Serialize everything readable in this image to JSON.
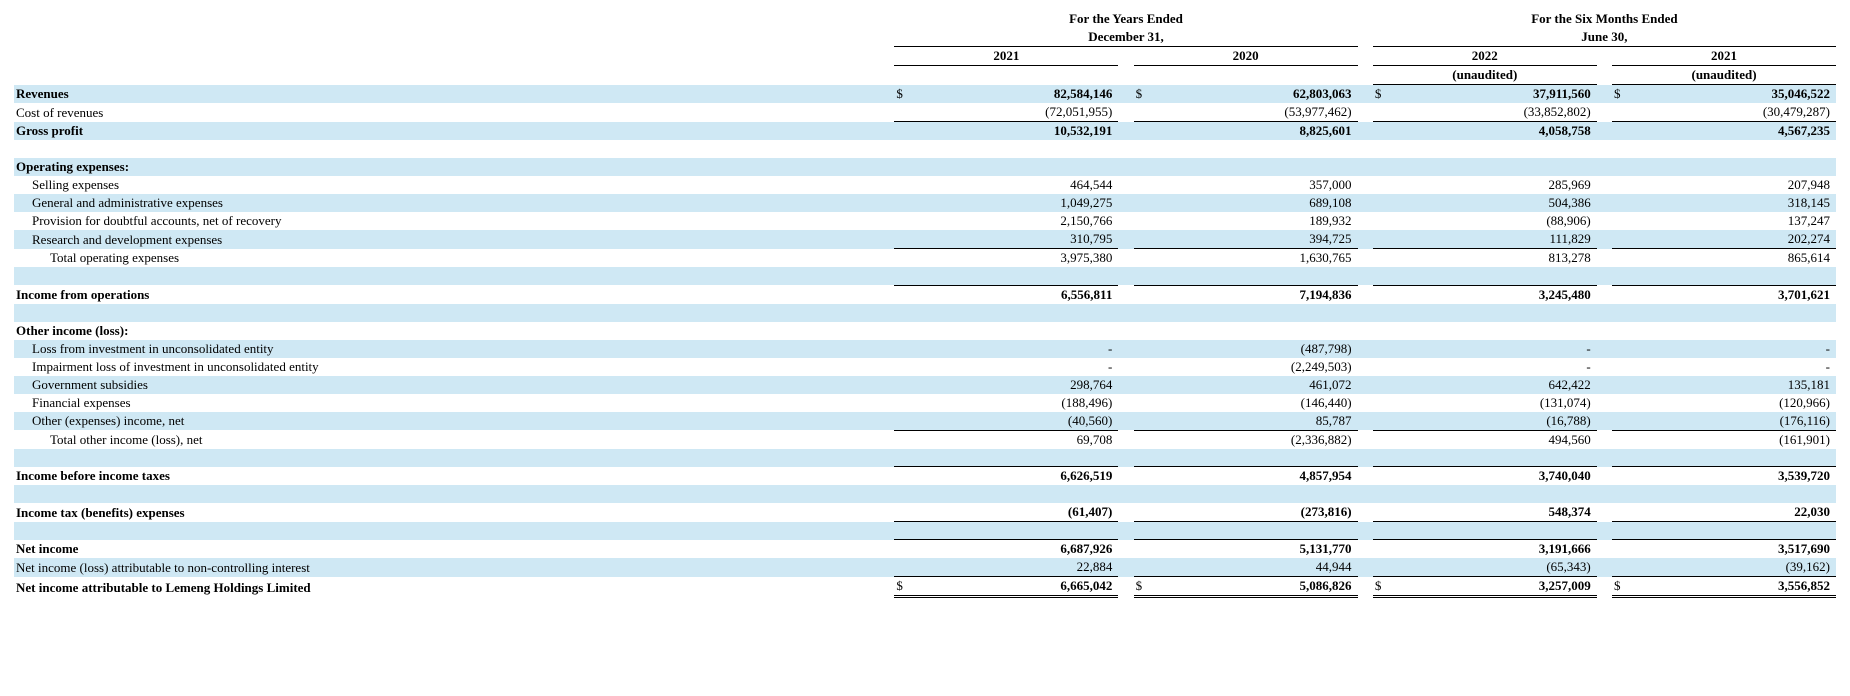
{
  "colors": {
    "row_shade": "#cfe8f4",
    "text": "#000000",
    "background": "#ffffff",
    "rule": "#000000"
  },
  "typography": {
    "font_family": "Times New Roman",
    "base_fontsize_pt": 10,
    "header_bold": true
  },
  "headers": {
    "annual_title_line1": "For the Years Ended",
    "annual_title_line2": "December 31,",
    "interim_title_line1": "For the Six Months Ended",
    "interim_title_line2": "June 30,",
    "col1": "2021",
    "col2": "2020",
    "col3": "2022",
    "col4": "2021",
    "unaudited": "(unaudited)"
  },
  "currency_symbol": "$",
  "rows": [
    {
      "id": "revenues",
      "label": "Revenues",
      "shade": true,
      "bold": true,
      "indent": 0,
      "show_currency": true,
      "v": [
        "82,584,146",
        "62,803,063",
        "37,911,560",
        "35,046,522"
      ],
      "border": "none"
    },
    {
      "id": "cost_of_revenues",
      "label": "Cost of revenues",
      "shade": false,
      "bold": false,
      "indent": 0,
      "v": [
        "(72,051,955)",
        "(53,977,462)",
        "(33,852,802)",
        "(30,479,287)"
      ],
      "border": "none"
    },
    {
      "id": "gross_profit",
      "label": "Gross profit",
      "shade": true,
      "bold": true,
      "indent": 0,
      "v": [
        "10,532,191",
        "8,825,601",
        "4,058,758",
        "4,567,235"
      ],
      "border": "sub"
    },
    {
      "id": "blank1",
      "blank": true
    },
    {
      "id": "operating_expenses_hdr",
      "label": "Operating expenses:",
      "shade": true,
      "bold": true,
      "indent": 0,
      "v": [
        "",
        "",
        "",
        ""
      ],
      "border": "none"
    },
    {
      "id": "selling_expenses",
      "label": "Selling expenses",
      "shade": false,
      "bold": false,
      "indent": 1,
      "v": [
        "464,544",
        "357,000",
        "285,969",
        "207,948"
      ],
      "border": "none"
    },
    {
      "id": "ga_expenses",
      "label": "General and administrative expenses",
      "shade": true,
      "bold": false,
      "indent": 1,
      "v": [
        "1,049,275",
        "689,108",
        "504,386",
        "318,145"
      ],
      "border": "none"
    },
    {
      "id": "doubtful",
      "label": "Provision for doubtful accounts, net of recovery",
      "shade": false,
      "bold": false,
      "indent": 1,
      "v": [
        "2,150,766",
        "189,932",
        "(88,906)",
        "137,247"
      ],
      "border": "none"
    },
    {
      "id": "rd_expenses",
      "label": "Research and development expenses",
      "shade": true,
      "bold": false,
      "indent": 1,
      "v": [
        "310,795",
        "394,725",
        "111,829",
        "202,274"
      ],
      "border": "none"
    },
    {
      "id": "total_opex",
      "label": "Total operating expenses",
      "shade": false,
      "bold": false,
      "indent": 2,
      "v": [
        "3,975,380",
        "1,630,765",
        "813,278",
        "865,614"
      ],
      "border": "sub"
    },
    {
      "id": "blank2",
      "blank": true,
      "shade": true
    },
    {
      "id": "income_ops",
      "label": "Income from operations",
      "shade": false,
      "bold": true,
      "indent": 0,
      "v": [
        "6,556,811",
        "7,194,836",
        "3,245,480",
        "3,701,621"
      ],
      "border": "sub"
    },
    {
      "id": "blank3",
      "blank": true,
      "shade": true
    },
    {
      "id": "other_income_hdr",
      "label": "Other income (loss):",
      "shade": false,
      "bold": true,
      "indent": 0,
      "v": [
        "",
        "",
        "",
        ""
      ],
      "border": "none"
    },
    {
      "id": "loss_invest",
      "label": "Loss from investment in unconsolidated entity",
      "shade": true,
      "bold": false,
      "indent": 1,
      "v": [
        "-",
        "(487,798)",
        "-",
        "-"
      ],
      "border": "none"
    },
    {
      "id": "impairment",
      "label": "Impairment loss of investment in unconsolidated entity",
      "shade": false,
      "bold": false,
      "indent": 1,
      "v": [
        "-",
        "(2,249,503)",
        "-",
        "-"
      ],
      "border": "none"
    },
    {
      "id": "gov_subs",
      "label": "Government subsidies",
      "shade": true,
      "bold": false,
      "indent": 1,
      "v": [
        "298,764",
        "461,072",
        "642,422",
        "135,181"
      ],
      "border": "none"
    },
    {
      "id": "fin_exp",
      "label": "Financial expenses",
      "shade": false,
      "bold": false,
      "indent": 1,
      "v": [
        "(188,496)",
        "(146,440)",
        "(131,074)",
        "(120,966)"
      ],
      "border": "none"
    },
    {
      "id": "other_exp",
      "label": "Other (expenses) income, net",
      "shade": true,
      "bold": false,
      "indent": 1,
      "v": [
        "(40,560)",
        "85,787",
        "(16,788)",
        "(176,116)"
      ],
      "border": "none"
    },
    {
      "id": "total_other",
      "label": "Total other income (loss), net",
      "shade": false,
      "bold": false,
      "indent": 2,
      "v": [
        "69,708",
        "(2,336,882)",
        "494,560",
        "(161,901)"
      ],
      "border": "sub"
    },
    {
      "id": "blank4",
      "blank": true,
      "shade": true
    },
    {
      "id": "income_before_tax",
      "label": "Income before income taxes",
      "shade": false,
      "bold": true,
      "indent": 0,
      "v": [
        "6,626,519",
        "4,857,954",
        "3,740,040",
        "3,539,720"
      ],
      "border": "sub"
    },
    {
      "id": "blank5",
      "blank": true,
      "shade": true
    },
    {
      "id": "tax",
      "label": "Income tax (benefits) expenses",
      "shade": false,
      "bold": true,
      "indent": 0,
      "v": [
        "(61,407)",
        "(273,816)",
        "548,374",
        "22,030"
      ],
      "border": "none"
    },
    {
      "id": "blank6",
      "blank": true,
      "shade": true,
      "border_below_cells": "sub"
    },
    {
      "id": "net_income",
      "label": "Net income",
      "shade": false,
      "bold": true,
      "indent": 0,
      "v": [
        "6,687,926",
        "5,131,770",
        "3,191,666",
        "3,517,690"
      ],
      "border": "sub"
    },
    {
      "id": "nci",
      "label": "Net income (loss) attributable to non-controlling interest",
      "shade": true,
      "bold": false,
      "indent": 0,
      "v": [
        "22,884",
        "44,944",
        "(65,343)",
        "(39,162)"
      ],
      "border": "none"
    },
    {
      "id": "attributable",
      "label": "Net income attributable to Lemeng Holdings Limited",
      "shade": false,
      "bold": true,
      "indent": 0,
      "show_currency": true,
      "v": [
        "6,665,042",
        "5,086,826",
        "3,257,009",
        "3,556,852"
      ],
      "border": "dbl"
    }
  ]
}
